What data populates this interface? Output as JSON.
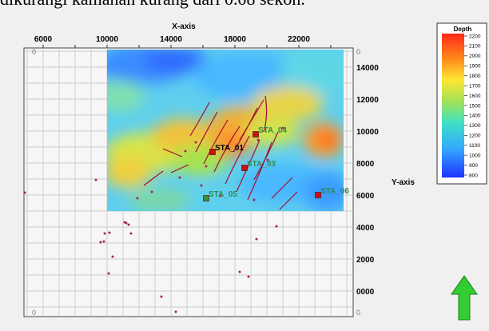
{
  "caption": "dikurangi kamanan kurang dari 0.08 sekon.",
  "axes": {
    "x_title": "X-axis",
    "y_title": "Y-axis",
    "x_ticks": [
      "6000",
      "10000",
      "14000",
      "18000",
      "22000"
    ],
    "y_ticks": [
      "14000",
      "12000",
      "10000",
      "8000",
      "6000",
      "4000",
      "2000",
      "0000"
    ],
    "corner_labels": [
      "0",
      "0",
      "0",
      "0"
    ]
  },
  "legend": {
    "title": "Depth",
    "ticks": [
      "2200",
      "2100",
      "2000",
      "1900",
      "1800",
      "1700",
      "1600",
      "1500",
      "1400",
      "1300",
      "1200",
      "1100",
      "1000",
      "900",
      "800"
    ]
  },
  "stations": [
    {
      "label": "STA_01",
      "x": 16600,
      "y": 8700,
      "marker_color": "#cc1010",
      "label_color": "#000000"
    },
    {
      "label": "STA_03",
      "x": 18600,
      "y": 7700,
      "marker_color": "#cc1010",
      "label_color": "#2e8b57"
    },
    {
      "label": "STA_04",
      "x": 19300,
      "y": 9800,
      "marker_color": "#cc1010",
      "label_color": "#2e8b57"
    },
    {
      "label": "STA_05",
      "x": 16200,
      "y": 5800,
      "marker_color": "#3c8c3c",
      "label_color": "#2e8b57"
    },
    {
      "label": "STA_06",
      "x": 23200,
      "y": 6000,
      "marker_color": "#cc1010",
      "label_color": "#2e8b57"
    }
  ],
  "compass": {
    "icon": "north-arrow-icon",
    "color": "#33cc33"
  },
  "colors": {
    "fault_line": "#a01030",
    "point": "#aa2255",
    "grid": "#bdbdbd"
  }
}
